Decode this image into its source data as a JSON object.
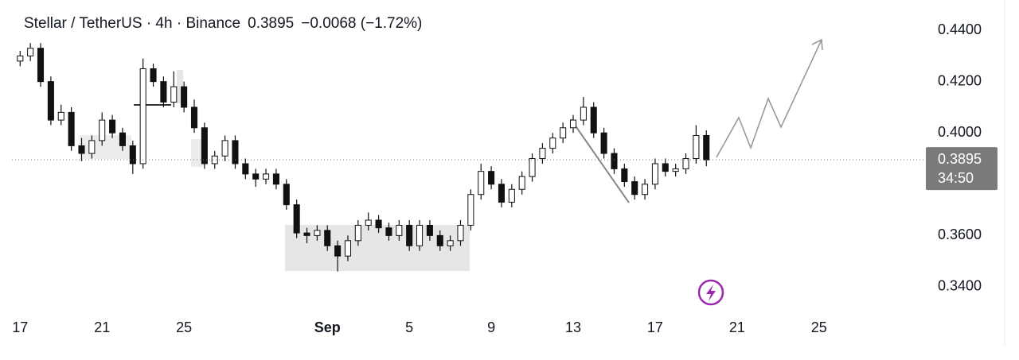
{
  "chart_data": {
    "type": "candlestick",
    "title": "Stellar / TetherUS · 4h · Binance",
    "last_price": 0.3895,
    "change": "−0.0068 (−1.72%)",
    "countdown": "34:50",
    "x": [
      17,
      17.5,
      18,
      18.5,
      19,
      19.5,
      20,
      20.5,
      21,
      21.5,
      22,
      22.5,
      23,
      23.5,
      24,
      24.5,
      25,
      25.5,
      26,
      26.5,
      27,
      27.5,
      28,
      28.5,
      29,
      29.5,
      30,
      30.5,
      31,
      31.5,
      32,
      32.5,
      33,
      33.5,
      34,
      34.5,
      35,
      35.5,
      36,
      36.5,
      37,
      37.5,
      38,
      38.5,
      39,
      39.5,
      40,
      40.5,
      41,
      41.5,
      42,
      42.5,
      43,
      43.5,
      44,
      44.5,
      45,
      45.5,
      46,
      46.5,
      47,
      47.5,
      48,
      48.5,
      49,
      49.5,
      50,
      50.5
    ],
    "open": [
      0.428,
      0.43,
      0.433,
      0.42,
      0.405,
      0.408,
      0.395,
      0.392,
      0.397,
      0.405,
      0.4,
      0.395,
      0.388,
      0.425,
      0.42,
      0.412,
      0.418,
      0.41,
      0.402,
      0.388,
      0.391,
      0.397,
      0.388,
      0.384,
      0.382,
      0.384,
      0.38,
      0.372,
      0.361,
      0.36,
      0.362,
      0.356,
      0.352,
      0.358,
      0.364,
      0.366,
      0.363,
      0.36,
      0.364,
      0.356,
      0.364,
      0.36,
      0.356,
      0.358,
      0.364,
      0.376,
      0.385,
      0.38,
      0.373,
      0.378,
      0.383,
      0.39,
      0.394,
      0.398,
      0.402,
      0.405,
      0.41,
      0.4,
      0.392,
      0.386,
      0.381,
      0.376,
      0.38,
      0.388,
      0.385,
      0.386,
      0.39,
      0.399
    ],
    "high": [
      0.432,
      0.435,
      0.435,
      0.422,
      0.411,
      0.41,
      0.398,
      0.399,
      0.408,
      0.407,
      0.402,
      0.397,
      0.429,
      0.427,
      0.422,
      0.424,
      0.42,
      0.413,
      0.404,
      0.393,
      0.399,
      0.399,
      0.39,
      0.386,
      0.386,
      0.386,
      0.382,
      0.374,
      0.363,
      0.364,
      0.364,
      0.358,
      0.36,
      0.366,
      0.369,
      0.368,
      0.365,
      0.366,
      0.366,
      0.366,
      0.366,
      0.362,
      0.36,
      0.366,
      0.378,
      0.388,
      0.387,
      0.382,
      0.38,
      0.385,
      0.392,
      0.396,
      0.4,
      0.404,
      0.407,
      0.414,
      0.412,
      0.402,
      0.394,
      0.388,
      0.383,
      0.382,
      0.39,
      0.39,
      0.388,
      0.392,
      0.403,
      0.401
    ],
    "low": [
      0.426,
      0.428,
      0.418,
      0.403,
      0.403,
      0.393,
      0.389,
      0.39,
      0.395,
      0.398,
      0.393,
      0.384,
      0.386,
      0.418,
      0.41,
      0.41,
      0.408,
      0.4,
      0.386,
      0.386,
      0.389,
      0.386,
      0.382,
      0.379,
      0.38,
      0.378,
      0.37,
      0.359,
      0.357,
      0.358,
      0.354,
      0.346,
      0.35,
      0.356,
      0.362,
      0.361,
      0.358,
      0.358,
      0.354,
      0.354,
      0.358,
      0.354,
      0.354,
      0.356,
      0.362,
      0.374,
      0.378,
      0.371,
      0.371,
      0.376,
      0.381,
      0.388,
      0.392,
      0.396,
      0.4,
      0.403,
      0.398,
      0.39,
      0.384,
      0.379,
      0.374,
      0.374,
      0.378,
      0.383,
      0.383,
      0.384,
      0.388,
      0.387
    ],
    "close": [
      0.43,
      0.433,
      0.42,
      0.405,
      0.408,
      0.395,
      0.392,
      0.397,
      0.405,
      0.4,
      0.395,
      0.388,
      0.425,
      0.42,
      0.412,
      0.418,
      0.41,
      0.402,
      0.388,
      0.391,
      0.397,
      0.388,
      0.384,
      0.382,
      0.384,
      0.38,
      0.372,
      0.361,
      0.36,
      0.362,
      0.356,
      0.352,
      0.358,
      0.364,
      0.366,
      0.363,
      0.36,
      0.364,
      0.356,
      0.364,
      0.36,
      0.356,
      0.358,
      0.364,
      0.376,
      0.385,
      0.38,
      0.373,
      0.378,
      0.383,
      0.39,
      0.394,
      0.398,
      0.402,
      0.405,
      0.41,
      0.4,
      0.392,
      0.386,
      0.381,
      0.376,
      0.38,
      0.388,
      0.385,
      0.386,
      0.39,
      0.399,
      0.3895
    ],
    "up_color": "#ffffff",
    "down_color": "#111111",
    "wick_color": "#111111",
    "xlim": [
      16.6,
      61.1
    ],
    "xticks": [
      17,
      21,
      25,
      {
        "value": 32,
        "label": "Sep"
      },
      {
        "value": 36,
        "label": "5"
      },
      {
        "value": 40,
        "label": "9"
      },
      {
        "value": 44,
        "label": "13"
      },
      {
        "value": 48,
        "label": "17"
      },
      {
        "value": 52,
        "label": "21"
      },
      {
        "value": 56,
        "label": "25"
      }
    ],
    "ylim": [
      0.3279,
      0.4518
    ],
    "yticks": [
      {
        "value": 0.34,
        "label": "0.3400"
      },
      {
        "value": 0.36,
        "label": "0.3600"
      },
      {
        "value": 0.4,
        "label": "0.4000"
      },
      {
        "value": 0.42,
        "label": "0.4200"
      },
      {
        "value": 0.44,
        "label": "0.4400"
      }
    ],
    "grid": false
  }
}
